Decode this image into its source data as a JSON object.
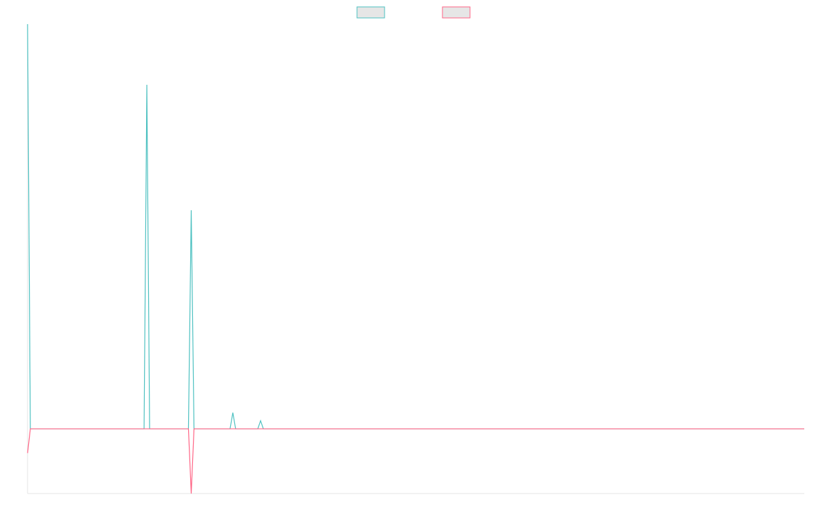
{
  "chart_data": {
    "type": "line",
    "xlim": [
      0,
      280
    ],
    "ylim": [
      -16,
      100
    ],
    "legend": "top",
    "legend_fill": "#e6e6e6",
    "series": [
      {
        "color": "#4bc0c0",
        "x": [
          0,
          1,
          42,
          43,
          44,
          58,
          59,
          60,
          73,
          74,
          75,
          83,
          84,
          85,
          280
        ],
        "values": [
          100,
          0,
          0,
          85,
          0,
          0,
          54,
          0,
          0,
          4,
          0,
          0,
          2,
          0,
          0
        ]
      },
      {
        "color": "#ff6384",
        "x": [
          0,
          1,
          58,
          59,
          60,
          280
        ],
        "values": [
          -6,
          0,
          0,
          -16,
          0,
          0
        ]
      }
    ]
  }
}
